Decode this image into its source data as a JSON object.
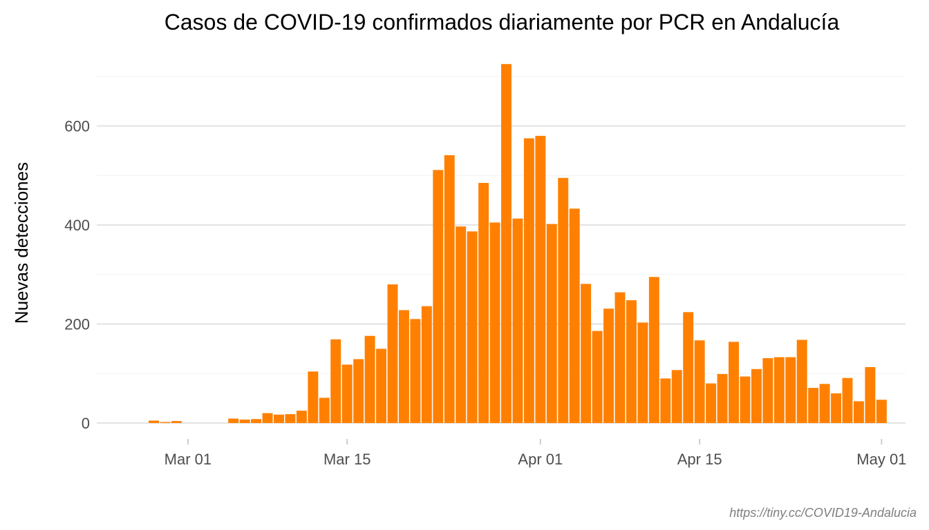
{
  "chart_data": {
    "type": "bar",
    "title": "Casos de COVID-19 confirmados diariamente por PCR en Andalucía",
    "xlabel": "",
    "ylabel": "Nuevas detecciones",
    "caption": "https://tiny.cc/COVID19-Andalucia",
    "bar_color": "#ff8000",
    "grid": true,
    "legend": "none",
    "ylim": [
      0,
      720
    ],
    "y_ticks": [
      0,
      200,
      400,
      600
    ],
    "y_tick_labels": [
      "0",
      "200",
      "400",
      "600"
    ],
    "x_ticks": [
      "2020-03-01",
      "2020-03-15",
      "2020-04-01",
      "2020-04-15",
      "2020-05-01"
    ],
    "x_tick_labels": [
      "Mar 01",
      "Mar 15",
      "Apr 01",
      "Apr 15",
      "May 01"
    ],
    "series": [
      {
        "x": [
          "2020-02-27",
          "2020-02-28",
          "2020-02-29",
          "2020-03-01",
          "2020-03-02",
          "2020-03-03",
          "2020-03-04",
          "2020-03-05",
          "2020-03-06",
          "2020-03-07",
          "2020-03-08",
          "2020-03-09",
          "2020-03-10",
          "2020-03-11",
          "2020-03-12",
          "2020-03-13",
          "2020-03-14",
          "2020-03-15",
          "2020-03-16",
          "2020-03-17",
          "2020-03-18",
          "2020-03-19",
          "2020-03-20",
          "2020-03-21",
          "2020-03-22",
          "2020-03-23",
          "2020-03-24",
          "2020-03-25",
          "2020-03-26",
          "2020-03-27",
          "2020-03-28",
          "2020-03-29",
          "2020-03-30",
          "2020-03-31",
          "2020-04-01",
          "2020-04-02",
          "2020-04-03",
          "2020-04-04",
          "2020-04-05",
          "2020-04-06",
          "2020-04-07",
          "2020-04-08",
          "2020-04-09",
          "2020-04-10",
          "2020-04-11",
          "2020-04-12",
          "2020-04-13",
          "2020-04-14",
          "2020-04-15",
          "2020-04-16",
          "2020-04-17",
          "2020-04-18",
          "2020-04-19",
          "2020-04-20",
          "2020-04-21",
          "2020-04-22",
          "2020-04-23",
          "2020-04-24",
          "2020-04-25",
          "2020-04-26",
          "2020-04-27",
          "2020-04-28",
          "2020-04-29",
          "2020-04-30",
          "2020-05-01"
        ],
        "values": [
          5,
          2,
          4,
          0,
          0,
          0,
          0,
          9,
          7,
          8,
          20,
          17,
          18,
          25,
          104,
          51,
          169,
          118,
          129,
          176,
          150,
          280,
          228,
          210,
          236,
          511,
          541,
          397,
          387,
          485,
          405,
          725,
          413,
          575,
          580,
          402,
          495,
          433,
          281,
          186,
          231,
          264,
          248,
          203,
          295,
          90,
          107,
          224,
          167,
          80,
          99,
          164,
          94,
          109,
          131,
          133,
          133,
          168,
          71,
          79,
          60,
          91,
          44,
          113,
          47
        ]
      }
    ]
  }
}
